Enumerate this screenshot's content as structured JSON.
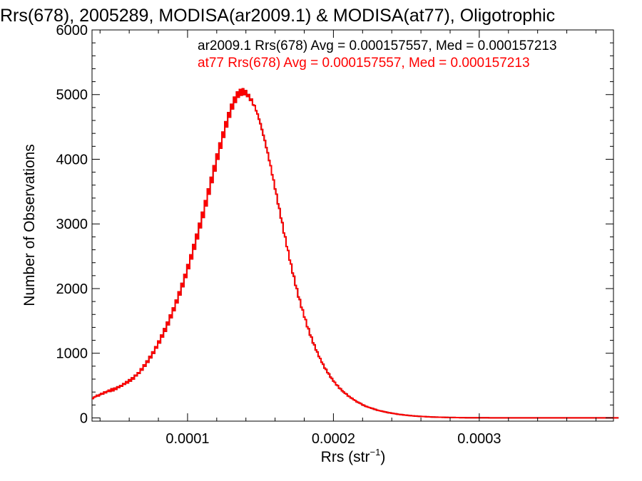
{
  "chart_data": {
    "type": "histogram",
    "title": "Rrs(678), 2005289, MODISA(ar2009.1) & MODISA(at77), Oligotrophic",
    "xlabel_base": "Rrs (str",
    "xlabel_sup": "−1",
    "xlabel_end": ")",
    "ylabel": "Number of Observations",
    "xlim": [
      3.45e-05,
      0.000392
    ],
    "ylim": [
      -50,
      6000
    ],
    "x_ticks": [
      0.0001,
      0.0002,
      0.0003
    ],
    "x_tick_labels": [
      "0.0001",
      "0.0002",
      "0.0003"
    ],
    "y_ticks": [
      0,
      1000,
      2000,
      3000,
      4000,
      5000,
      6000
    ],
    "y_tick_labels": [
      "0",
      "1000",
      "2000",
      "3000",
      "4000",
      "5000",
      "6000"
    ],
    "bin_width": 1e-06,
    "bin_start": 3.45e-05,
    "colors": {
      "ar2009_1": "#000000",
      "at77": "#ff0000",
      "axes": "#000000"
    },
    "legend_position": "top-right",
    "series": [
      {
        "name": "ar2009.1",
        "color": "#000000",
        "legend": "ar2009.1 Rrs(678) Avg = 0.000157557, Med = 0.000157213",
        "values": [
          300,
          320,
          330,
          350,
          340,
          360,
          380,
          370,
          400,
          390,
          410,
          430,
          410,
          450,
          420,
          460,
          440,
          480,
          470,
          500,
          490,
          530,
          520,
          560,
          540,
          590,
          570,
          620,
          600,
          660,
          650,
          700,
          690,
          760,
          740,
          820,
          800,
          880,
          860,
          950,
          930,
          1020,
          1000,
          1100,
          1080,
          1190,
          1160,
          1280,
          1250,
          1380,
          1340,
          1480,
          1440,
          1590,
          1550,
          1700,
          1660,
          1820,
          1780,
          1950,
          1900,
          2080,
          2030,
          2220,
          2170,
          2370,
          2310,
          2520,
          2460,
          2680,
          2610,
          2840,
          2770,
          3010,
          2940,
          3180,
          3100,
          3360,
          3280,
          3540,
          3460,
          3720,
          3640,
          3900,
          3820,
          4080,
          4000,
          4250,
          4170,
          4420,
          4340,
          4580,
          4500,
          4720,
          4650,
          4850,
          4780,
          4960,
          4880,
          5040,
          4960,
          5080,
          4990,
          5090,
          5000,
          5060,
          4970,
          5000,
          4910,
          4930,
          4840,
          4830,
          4750,
          4700,
          4620,
          4550,
          4460,
          4370,
          4290,
          4180,
          4100,
          3980,
          3900,
          3760,
          3680,
          3540,
          3460,
          3310,
          3240,
          3090,
          3020,
          2860,
          2800,
          2650,
          2590,
          2440,
          2380,
          2240,
          2190,
          2050,
          2000,
          1870,
          1830,
          1710,
          1670,
          1560,
          1520,
          1410,
          1380,
          1280,
          1250,
          1160,
          1130,
          1050,
          1020,
          950,
          920,
          860,
          830,
          770,
          750,
          700,
          680,
          630,
          610,
          570,
          550,
          510,
          500,
          460,
          450,
          420,
          400,
          380,
          370,
          340,
          330,
          310,
          300,
          280,
          270,
          250,
          240,
          230,
          220,
          200,
          195,
          180,
          175,
          165,
          160,
          150,
          145,
          135,
          130,
          120,
          115,
          110,
          105,
          100,
          95,
          90,
          85,
          80,
          78,
          72,
          70,
          66,
          63,
          58,
          55,
          52,
          50,
          46,
          44,
          42,
          40,
          37,
          35,
          33,
          31,
          29,
          28,
          26,
          25,
          23,
          22,
          21,
          20,
          18,
          17,
          16,
          15,
          14,
          13,
          12,
          12,
          11,
          10,
          10,
          9,
          9,
          8,
          8,
          7,
          7,
          6,
          6,
          6,
          5,
          5,
          5,
          4,
          4,
          4,
          4,
          3,
          3,
          3,
          3,
          3,
          3,
          2,
          2,
          2,
          2,
          2,
          2,
          2,
          2,
          2,
          2,
          1,
          1,
          1,
          1,
          1,
          1,
          1,
          1,
          1,
          1,
          1,
          1,
          1,
          1,
          1,
          1,
          1,
          1,
          1,
          1,
          1,
          1,
          1,
          1,
          1,
          1,
          1,
          1,
          1,
          1,
          1,
          1,
          1,
          1,
          1,
          1,
          1,
          1,
          1,
          1,
          1,
          1,
          1,
          1,
          1,
          1,
          1,
          1,
          1,
          1,
          1,
          1,
          1,
          1,
          1,
          1,
          1,
          1,
          1,
          1,
          1,
          1,
          1,
          1,
          1,
          1,
          1,
          1,
          1,
          1,
          1,
          1,
          1,
          1,
          1,
          1,
          1,
          1,
          1,
          1,
          1,
          1,
          1,
          1,
          1,
          1,
          1,
          1,
          1,
          1
        ]
      },
      {
        "name": "at77",
        "color": "#ff0000",
        "legend": "at77 Rrs(678) Avg = 0.000157557, Med = 0.000157213",
        "values": [
          300,
          320,
          330,
          350,
          340,
          360,
          380,
          370,
          400,
          390,
          410,
          430,
          410,
          450,
          420,
          460,
          440,
          480,
          470,
          500,
          490,
          530,
          520,
          560,
          540,
          590,
          570,
          620,
          600,
          660,
          650,
          700,
          690,
          760,
          740,
          820,
          800,
          880,
          860,
          950,
          930,
          1020,
          1000,
          1100,
          1080,
          1190,
          1160,
          1280,
          1250,
          1380,
          1340,
          1480,
          1440,
          1590,
          1550,
          1700,
          1660,
          1820,
          1780,
          1950,
          1900,
          2080,
          2030,
          2220,
          2170,
          2370,
          2310,
          2520,
          2460,
          2680,
          2610,
          2840,
          2770,
          3010,
          2940,
          3180,
          3100,
          3360,
          3280,
          3540,
          3460,
          3720,
          3640,
          3900,
          3820,
          4080,
          4000,
          4250,
          4170,
          4420,
          4340,
          4580,
          4500,
          4720,
          4650,
          4850,
          4780,
          4960,
          4880,
          5040,
          4960,
          5080,
          4990,
          5090,
          5000,
          5060,
          4970,
          5000,
          4910,
          4930,
          4840,
          4830,
          4750,
          4700,
          4620,
          4550,
          4460,
          4370,
          4290,
          4180,
          4100,
          3980,
          3900,
          3760,
          3680,
          3540,
          3460,
          3310,
          3240,
          3090,
          3020,
          2860,
          2800,
          2650,
          2590,
          2440,
          2380,
          2240,
          2190,
          2050,
          2000,
          1870,
          1830,
          1710,
          1670,
          1560,
          1520,
          1410,
          1380,
          1280,
          1250,
          1160,
          1130,
          1050,
          1020,
          950,
          920,
          860,
          830,
          770,
          750,
          700,
          680,
          630,
          610,
          570,
          550,
          510,
          500,
          460,
          450,
          420,
          400,
          380,
          370,
          340,
          330,
          310,
          300,
          280,
          270,
          250,
          240,
          230,
          220,
          200,
          195,
          180,
          175,
          165,
          160,
          150,
          145,
          135,
          130,
          120,
          115,
          110,
          105,
          100,
          95,
          90,
          85,
          80,
          78,
          72,
          70,
          66,
          63,
          58,
          55,
          52,
          50,
          46,
          44,
          42,
          40,
          37,
          35,
          33,
          31,
          29,
          28,
          26,
          25,
          23,
          22,
          21,
          20,
          18,
          17,
          16,
          15,
          14,
          13,
          12,
          12,
          11,
          10,
          10,
          9,
          9,
          8,
          8,
          7,
          7,
          6,
          6,
          6,
          5,
          5,
          5,
          4,
          4,
          4,
          4,
          3,
          3,
          3,
          3,
          3,
          3,
          2,
          2,
          2,
          2,
          2,
          2,
          2,
          2,
          2,
          2,
          1,
          1,
          1,
          1,
          1,
          1,
          1,
          1,
          1,
          1,
          1,
          1,
          1,
          1,
          1,
          1,
          1,
          1,
          1,
          1,
          1,
          1,
          1,
          1,
          1,
          1,
          1,
          1,
          1,
          1,
          1,
          1,
          1,
          1,
          1,
          1,
          1,
          1,
          1,
          1,
          1,
          1,
          1,
          1,
          1,
          1,
          1,
          1,
          1,
          1,
          1,
          1,
          1,
          1,
          1,
          1,
          1,
          1,
          1,
          1,
          1,
          1,
          1,
          1,
          1,
          1,
          1,
          1,
          1,
          1,
          1,
          1,
          1,
          1,
          1,
          1,
          1,
          1,
          1,
          1,
          1,
          1,
          1,
          1,
          1,
          1,
          1,
          1,
          1,
          1
        ]
      }
    ]
  }
}
